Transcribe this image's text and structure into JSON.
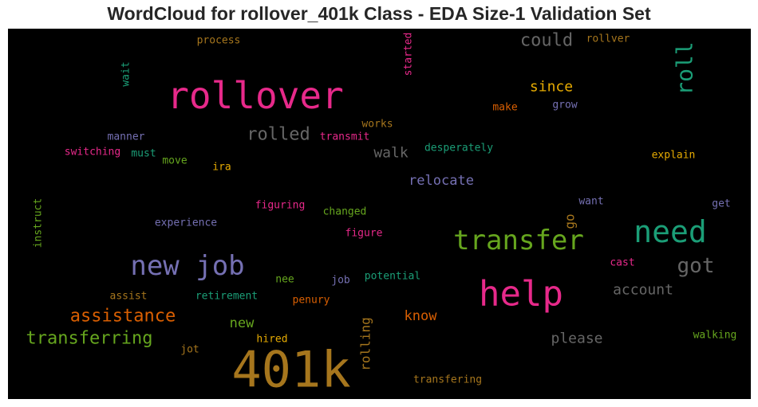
{
  "chart_data": {
    "type": "wordcloud",
    "title": "WordCloud for rollover_401k Class - EDA Size-1 Validation Set",
    "background": "#000000",
    "words": [
      {
        "text": "401k",
        "color": "#a6761d"
      },
      {
        "text": "rollover",
        "color": "#e7298a"
      },
      {
        "text": "help",
        "color": "#e7298a"
      },
      {
        "text": "new job",
        "color": "#7570b3"
      },
      {
        "text": "transfer",
        "color": "#66a61e"
      },
      {
        "text": "need",
        "color": "#1b9e77"
      },
      {
        "text": "roll",
        "color": "#1b9e77"
      },
      {
        "text": "got",
        "color": "#666666"
      },
      {
        "text": "assistance",
        "color": "#d95f02"
      },
      {
        "text": "transferring",
        "color": "#66a61e"
      },
      {
        "text": "could",
        "color": "#666666"
      },
      {
        "text": "rolled",
        "color": "#666666"
      },
      {
        "text": "account",
        "color": "#666666"
      },
      {
        "text": "since",
        "color": "#e6ab02"
      },
      {
        "text": "relocate",
        "color": "#7570b3"
      },
      {
        "text": "please",
        "color": "#666666"
      },
      {
        "text": "walk",
        "color": "#666666"
      },
      {
        "text": "know",
        "color": "#d95f02"
      },
      {
        "text": "new",
        "color": "#66a61e"
      },
      {
        "text": "rolling",
        "color": "#a6761d"
      },
      {
        "text": "go",
        "color": "#a6761d"
      },
      {
        "text": "process",
        "color": "#a6761d"
      },
      {
        "text": "wait",
        "color": "#1b9e77"
      },
      {
        "text": "started",
        "color": "#e7298a"
      },
      {
        "text": "rollver",
        "color": "#a6761d"
      },
      {
        "text": "make",
        "color": "#d95f02"
      },
      {
        "text": "grow",
        "color": "#7570b3"
      },
      {
        "text": "manner",
        "color": "#7570b3"
      },
      {
        "text": "transmit",
        "color": "#e7298a"
      },
      {
        "text": "works",
        "color": "#a6761d"
      },
      {
        "text": "switching",
        "color": "#e7298a"
      },
      {
        "text": "must",
        "color": "#1b9e77"
      },
      {
        "text": "move",
        "color": "#66a61e"
      },
      {
        "text": "ira",
        "color": "#e6ab02"
      },
      {
        "text": "desperately",
        "color": "#1b9e77"
      },
      {
        "text": "explain",
        "color": "#e6ab02"
      },
      {
        "text": "instruct",
        "color": "#66a61e"
      },
      {
        "text": "experience",
        "color": "#7570b3"
      },
      {
        "text": "figuring",
        "color": "#e7298a"
      },
      {
        "text": "changed",
        "color": "#66a61e"
      },
      {
        "text": "figure",
        "color": "#e7298a"
      },
      {
        "text": "want",
        "color": "#7570b3"
      },
      {
        "text": "get",
        "color": "#7570b3"
      },
      {
        "text": "cast",
        "color": "#e7298a"
      },
      {
        "text": "nee",
        "color": "#66a61e"
      },
      {
        "text": "job",
        "color": "#7570b3"
      },
      {
        "text": "potential",
        "color": "#1b9e77"
      },
      {
        "text": "assist",
        "color": "#a6761d"
      },
      {
        "text": "retirement",
        "color": "#1b9e77"
      },
      {
        "text": "penury",
        "color": "#d95f02"
      },
      {
        "text": "hired",
        "color": "#e6ab02"
      },
      {
        "text": "jot",
        "color": "#a6761d"
      },
      {
        "text": "walking",
        "color": "#66a61e"
      },
      {
        "text": "transfering",
        "color": "#a6761d"
      }
    ]
  }
}
